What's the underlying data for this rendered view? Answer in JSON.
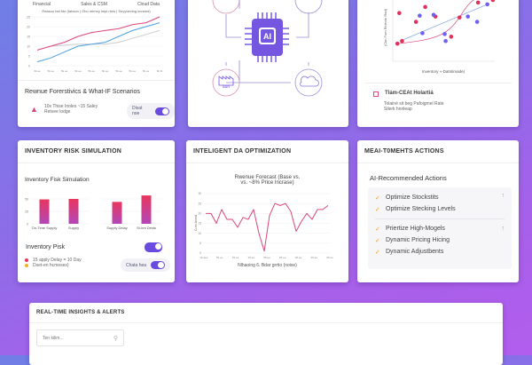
{
  "forecast_card": {
    "tabs": [
      "Financial",
      "Sales & CSM",
      "Cloud Data"
    ],
    "subtitle": "Reason bat fde (fabson | Gbo reimey impl.rtnio | Seyyoeving imneed)",
    "y_ticks": [
      "0",
      "5",
      "10",
      "15",
      "20",
      "25"
    ],
    "x_ticks": [
      "0k ee",
      "5k ee",
      "5k ee",
      "5k ee",
      "5k ee",
      "9k ee",
      "5k ee",
      "5k ee",
      "5k ee",
      "9k bt"
    ],
    "series": {
      "red": [
        8,
        10,
        12,
        15,
        17,
        18,
        19,
        21,
        22,
        25
      ],
      "blue": [
        2,
        4,
        7,
        10,
        11,
        12,
        15,
        18,
        20,
        22
      ],
      "gray": [
        null,
        10,
        10.5,
        11,
        11,
        11,
        12,
        14,
        16,
        18
      ]
    },
    "section_title": "Rewnue Forerstivics & What-IF Scenarios",
    "scenario_line1": "10x Thise Inoles ~15 Saley",
    "scenario_line2": "Retvee lodge",
    "toggle_label": "Disat noe",
    "colors": {
      "red": "#d9467a",
      "blue": "#4aa0e0",
      "gray": "#cccccc"
    }
  },
  "ai_hub": {
    "chip_label": "AI",
    "factory_label": "aun",
    "icons": [
      "factory-icon",
      "cloud-icon",
      "ai-chip-icon"
    ]
  },
  "scatter_card": {
    "ylabel": "(Ckn Fom Relecte Rad)",
    "xlabel": "Inventory «-Datntimade)",
    "red_points": [
      [
        0.5,
        1
      ],
      [
        1,
        1.3
      ],
      [
        0.7,
        4.5
      ],
      [
        2.5,
        3.5
      ],
      [
        3.5,
        5.2
      ],
      [
        4.6,
        4.1
      ],
      [
        6.3,
        1.8
      ],
      [
        7.2,
        4
      ],
      [
        9.2,
        5.7
      ],
      [
        10.8,
        6
      ]
    ],
    "blue_points": [
      [
        2.9,
        4.2
      ],
      [
        3.2,
        2.2
      ],
      [
        4.4,
        4.3
      ],
      [
        5.6,
        2.1
      ],
      [
        5.7,
        1.3
      ],
      [
        8.1,
        4.1
      ],
      [
        9.1,
        3.5
      ],
      [
        10.2,
        5.5
      ]
    ],
    "legend_title": "Tlám-CEAt Holartiá",
    "legend_line1": "Tolainé sit beg Pafoigmel Rate",
    "legend_line2": "Silerk hnnleap"
  },
  "inventory_card": {
    "header": "INVENTORY RISK SIMULATION",
    "title": "Inventory Fisk Simulation",
    "y_ticks": [
      "0",
      "25",
      "50"
    ],
    "bars": [
      {
        "label": "On-Time Supply",
        "value": 49
      },
      {
        "label": "Supply",
        "value": 50
      },
      {
        "label": "Supply Delay",
        "value": 44
      },
      {
        "label": "St-hnt Dests",
        "value": 57
      }
    ],
    "risk_title": "Inventory Pisk",
    "risk_line1": "15 apply Delay = 10 Day",
    "risk_line2": "Dset-en hcmeses)",
    "toggle_label": "Chata hea",
    "colors": {
      "bar_top": "#e8365f",
      "bar_bottom": "#b347b8",
      "dot1": "#e8365f",
      "dot2": "#f3b020"
    }
  },
  "optimization_card": {
    "header": "INTELIGENT DA OPTIMIZATION",
    "chart_title_1": "Rwenue Forecast (Base vs.",
    "chart_title_2": "vs. ~8% Price Incrase)",
    "ylabel": "Ò-ee Aroed",
    "y_ticks": [
      "0",
      "5",
      "10",
      "15",
      "20",
      "25",
      "30"
    ],
    "x_ticks": [
      "0k aes",
      "5k ee",
      "15 ee",
      "15 ee",
      "55 ee",
      "26 ee",
      "26 ee",
      "26 ee",
      "26 ee"
    ],
    "values": [
      20,
      20,
      15,
      22,
      17,
      17,
      13,
      18,
      17,
      22,
      10,
      1,
      19,
      25,
      24,
      25,
      21,
      11,
      16,
      20,
      17,
      22,
      22,
      24
    ],
    "legend": "Nlhaoing 6. Bdar grrtio (noise)",
    "color": "#d9467a"
  },
  "actions_card": {
    "header": "MEAI-T0MEHTS ACTIONS",
    "title": "AI-Recommended Actions",
    "group1": [
      "Optimize Stockstits",
      "Optimize Stecking Levels"
    ],
    "group2": [
      "Priertize High-Mogels",
      "Dynamic Pricing Hicing",
      "Dynamic Adjustbents"
    ]
  },
  "alerts_card": {
    "header": "REAL-TIME INSIGHTS & ALERTS",
    "search_placeholder": "Ten kilim..."
  }
}
